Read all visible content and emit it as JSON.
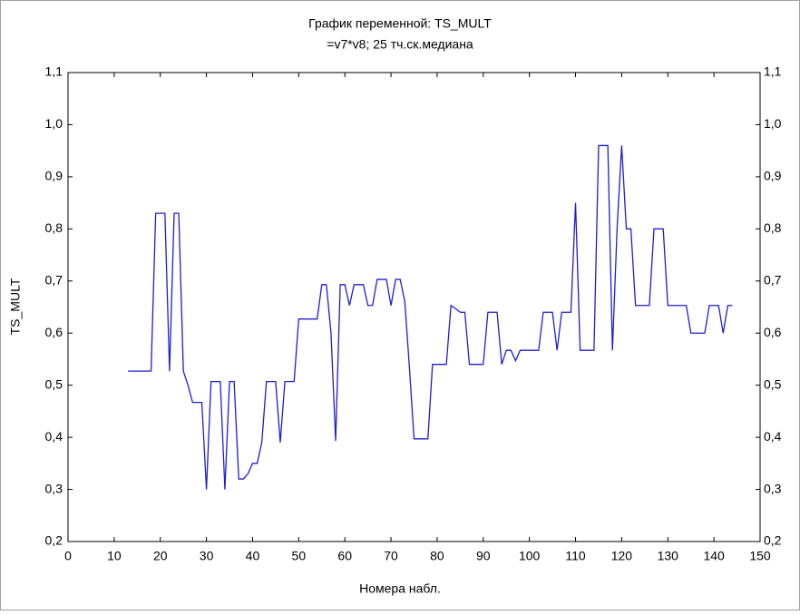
{
  "chart_data": {
    "type": "line",
    "title": "График переменной: TS_MULT",
    "subtitle": "=v7*v8; 25 тч.ск.медиана",
    "x_label": "Номера набл.",
    "y_label": "TS_MULT",
    "xlim": [
      0,
      150
    ],
    "xticks": [
      0,
      10,
      20,
      30,
      40,
      50,
      60,
      70,
      80,
      90,
      100,
      110,
      120,
      130,
      140,
      150
    ],
    "ylim": [
      0.2,
      1.1
    ],
    "yticks": [
      {
        "value": 0.2,
        "label": "0,2"
      },
      {
        "value": 0.3,
        "label": "0,3"
      },
      {
        "value": 0.4,
        "label": "0,4"
      },
      {
        "value": 0.5,
        "label": "0,5"
      },
      {
        "value": 0.6,
        "label": "0,6"
      },
      {
        "value": 0.7,
        "label": "0,7"
      },
      {
        "value": 0.8,
        "label": "0,8"
      },
      {
        "value": 0.9,
        "label": "0,9"
      },
      {
        "value": 1.0,
        "label": "1,0"
      },
      {
        "value": 1.1,
        "label": "1,1"
      }
    ],
    "grid": false,
    "series": [
      {
        "name": "TS_MULT",
        "color": "#1e1ed2",
        "x": [
          13,
          14,
          15,
          16,
          17,
          18,
          19,
          20,
          21,
          22,
          23,
          24,
          25,
          26,
          27,
          28,
          29,
          30,
          31,
          32,
          33,
          34,
          35,
          36,
          37,
          38,
          39,
          40,
          41,
          42,
          43,
          44,
          45,
          46,
          47,
          48,
          49,
          50,
          51,
          52,
          53,
          54,
          55,
          56,
          57,
          58,
          59,
          60,
          61,
          62,
          63,
          64,
          65,
          66,
          67,
          68,
          69,
          70,
          71,
          72,
          73,
          74,
          75,
          76,
          77,
          78,
          79,
          80,
          81,
          82,
          83,
          84,
          85,
          86,
          87,
          88,
          89,
          90,
          91,
          92,
          93,
          94,
          95,
          96,
          97,
          98,
          99,
          100,
          101,
          102,
          103,
          104,
          105,
          106,
          107,
          108,
          109,
          110,
          111,
          112,
          113,
          114,
          115,
          116,
          117,
          118,
          119,
          120,
          121,
          122,
          123,
          124,
          125,
          126,
          127,
          128,
          129,
          130,
          131,
          132,
          133,
          134,
          135,
          136,
          137,
          138,
          139,
          140,
          141,
          142,
          143,
          144
        ],
        "values": [
          0.527,
          0.527,
          0.527,
          0.527,
          0.527,
          0.527,
          0.83,
          0.83,
          0.83,
          0.527,
          0.83,
          0.83,
          0.527,
          0.5,
          0.467,
          0.467,
          0.467,
          0.3,
          0.507,
          0.507,
          0.507,
          0.3,
          0.507,
          0.507,
          0.32,
          0.32,
          0.33,
          0.35,
          0.35,
          0.39,
          0.507,
          0.507,
          0.507,
          0.39,
          0.507,
          0.507,
          0.507,
          0.627,
          0.627,
          0.627,
          0.627,
          0.627,
          0.693,
          0.693,
          0.6,
          0.393,
          0.693,
          0.693,
          0.653,
          0.693,
          0.693,
          0.693,
          0.653,
          0.653,
          0.703,
          0.703,
          0.703,
          0.653,
          0.703,
          0.703,
          0.66,
          0.533,
          0.397,
          0.397,
          0.397,
          0.397,
          0.54,
          0.54,
          0.54,
          0.54,
          0.653,
          0.647,
          0.64,
          0.64,
          0.54,
          0.54,
          0.54,
          0.54,
          0.64,
          0.64,
          0.64,
          0.54,
          0.567,
          0.567,
          0.547,
          0.567,
          0.567,
          0.567,
          0.567,
          0.567,
          0.64,
          0.64,
          0.64,
          0.567,
          0.64,
          0.64,
          0.64,
          0.85,
          0.567,
          0.567,
          0.567,
          0.567,
          0.96,
          0.96,
          0.96,
          0.567,
          0.8,
          0.96,
          0.8,
          0.8,
          0.653,
          0.653,
          0.653,
          0.653,
          0.8,
          0.8,
          0.8,
          0.653,
          0.653,
          0.653,
          0.653,
          0.653,
          0.6,
          0.6,
          0.6,
          0.6,
          0.653,
          0.653,
          0.653,
          0.6,
          0.653,
          0.653
        ]
      }
    ]
  }
}
